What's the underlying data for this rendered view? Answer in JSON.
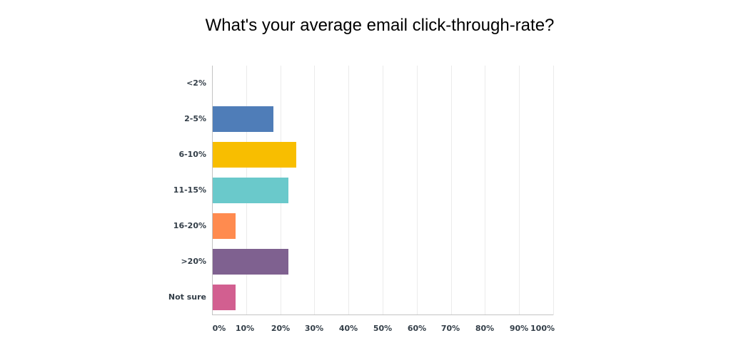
{
  "chart_data": {
    "type": "bar",
    "orientation": "horizontal",
    "title": "What's your average email click-through-rate?",
    "xlabel": "",
    "ylabel": "",
    "categories": [
      "<2%",
      "2-5%",
      "6-10%",
      "11-15%",
      "16-20%",
      ">20%",
      "Not sure"
    ],
    "values": [
      0,
      17.78,
      24.44,
      22.22,
      6.67,
      22.22,
      6.67
    ],
    "colors": [
      "#4f7db8",
      "#4f7db8",
      "#f8be00",
      "#6ac9cb",
      "#ff8b4f",
      "#7f6190",
      "#d25f90"
    ],
    "xlim": [
      0,
      100
    ],
    "xticks": [
      "0%",
      "10%",
      "20%",
      "30%",
      "40%",
      "50%",
      "60%",
      "70%",
      "80%",
      "90%",
      "100%"
    ],
    "grid": true,
    "legend": "none"
  }
}
